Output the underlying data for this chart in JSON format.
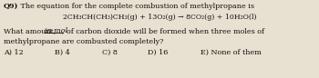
{
  "title_bold": "Q9)",
  "title_rest": " The equation for the complete combustion of methylpropane is",
  "equation": "2CH₃CH(CH₃)CH₃(g) + 13O₂(g) → 8CO₂(g) + 10H₂O(l)",
  "q_pre": "What amount, ",
  "q_underline": "in mol",
  "q_post": ", of carbon dioxide will be formed when three moles of",
  "q_line2": "methylpropane are combusted completely?",
  "ans_a": "A) 12",
  "ans_b": "B) 4",
  "ans_c": "C) 8",
  "ans_d": "D) 16",
  "ans_e": "E) None of them",
  "bg_color": "#e8e0d0",
  "text_color": "#111111",
  "font_size": 5.8,
  "eq_font_size": 5.6
}
